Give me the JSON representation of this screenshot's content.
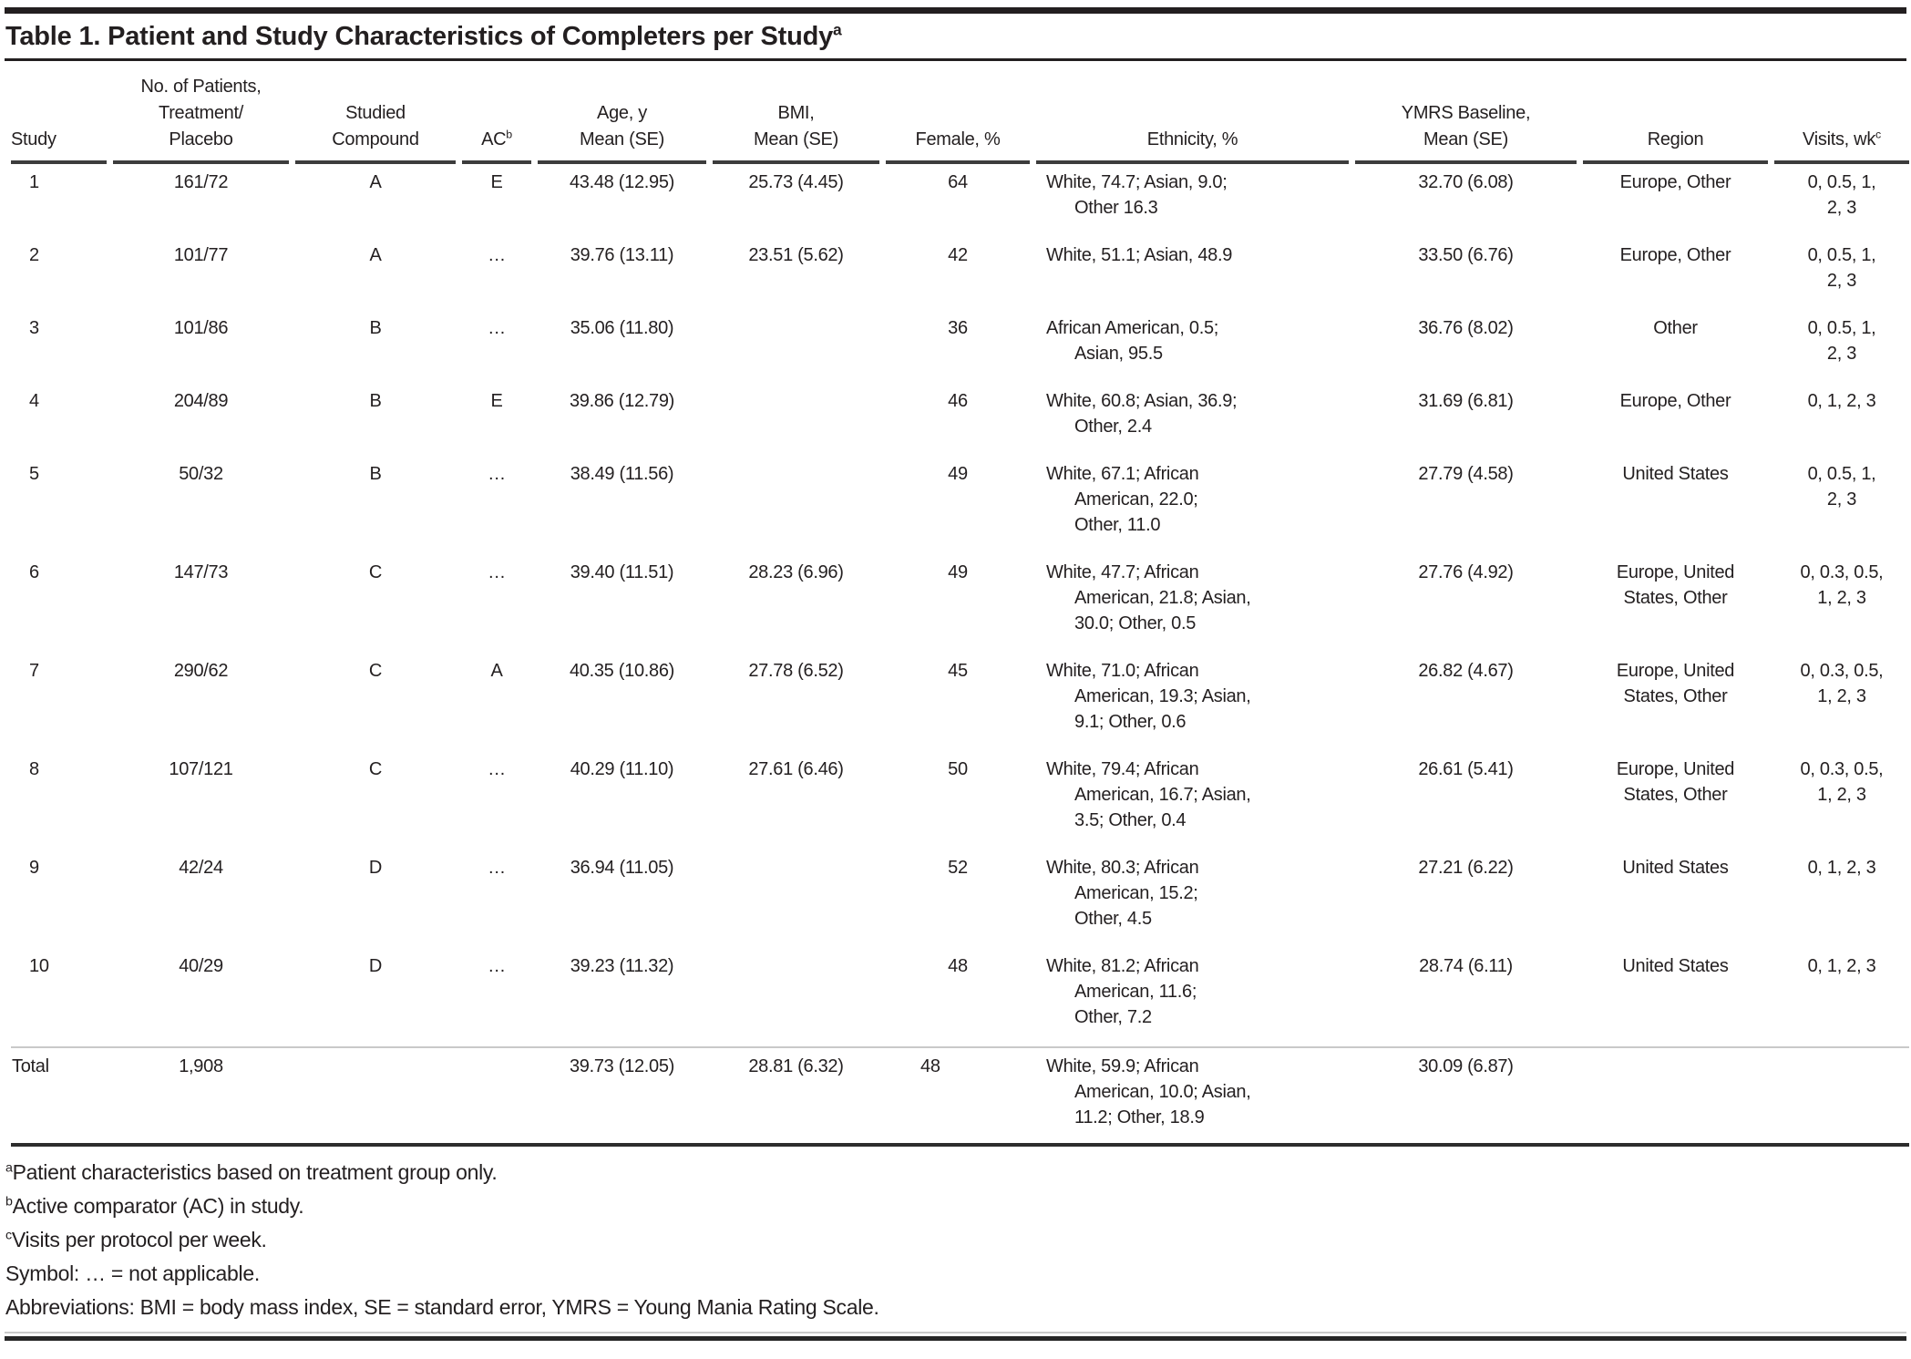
{
  "table": {
    "title": {
      "text": "Table 1. Patient and Study Characteristics of Completers per Study",
      "sup": "a"
    },
    "columns": {
      "study": "Study",
      "patients": "No. of Patients,\nTreatment/\nPlacebo",
      "compound": "Studied\nCompound",
      "ac": "AC",
      "ac_sup": "b",
      "age": "Age, y\nMean (SE)",
      "bmi": "BMI,\nMean (SE)",
      "female": "Female, %",
      "ethnicity": "Ethnicity, %",
      "ymrs": "YMRS Baseline,\nMean (SE)",
      "region": "Region",
      "visits": "Visits, wk",
      "visits_sup": "c"
    },
    "rows": [
      {
        "study": "1",
        "patients": "161/72",
        "compound": "A",
        "ac": "E",
        "age": "43.48 (12.95)",
        "bmi": "25.73 (4.45)",
        "female": "64",
        "ethnicity": "White, 74.7; Asian, 9.0;\nOther 16.3",
        "ymrs": "32.70 (6.08)",
        "region": "Europe, Other",
        "visits": "0, 0.5, 1,\n2, 3"
      },
      {
        "study": "2",
        "patients": "101/77",
        "compound": "A",
        "ac": "…",
        "age": "39.76 (13.11)",
        "bmi": "23.51 (5.62)",
        "female": "42",
        "ethnicity": "White, 51.1; Asian, 48.9",
        "ymrs": "33.50 (6.76)",
        "region": "Europe, Other",
        "visits": "0, 0.5, 1,\n2, 3"
      },
      {
        "study": "3",
        "patients": "101/86",
        "compound": "B",
        "ac": "…",
        "age": "35.06 (11.80)",
        "bmi": "",
        "female": "36",
        "ethnicity": "African American, 0.5;\nAsian, 95.5",
        "ymrs": "36.76 (8.02)",
        "region": "Other",
        "visits": "0, 0.5, 1,\n2, 3"
      },
      {
        "study": "4",
        "patients": "204/89",
        "compound": "B",
        "ac": "E",
        "age": "39.86 (12.79)",
        "bmi": "",
        "female": "46",
        "ethnicity": "White, 60.8; Asian, 36.9;\nOther, 2.4",
        "ymrs": "31.69 (6.81)",
        "region": "Europe, Other",
        "visits": "0, 1, 2, 3"
      },
      {
        "study": "5",
        "patients": "50/32",
        "compound": "B",
        "ac": "…",
        "age": "38.49 (11.56)",
        "bmi": "",
        "female": "49",
        "ethnicity": "White, 67.1; African\nAmerican, 22.0;\nOther, 11.0",
        "ymrs": "27.79 (4.58)",
        "region": "United States",
        "visits": "0, 0.5, 1,\n2, 3"
      },
      {
        "study": "6",
        "patients": "147/73",
        "compound": "C",
        "ac": "…",
        "age": "39.40 (11.51)",
        "bmi": "28.23 (6.96)",
        "female": "49",
        "ethnicity": "White, 47.7; African\nAmerican, 21.8; Asian,\n30.0; Other, 0.5",
        "ymrs": "27.76 (4.92)",
        "region": "Europe, United\nStates, Other",
        "visits": "0, 0.3, 0.5,\n1, 2, 3"
      },
      {
        "study": "7",
        "patients": "290/62",
        "compound": "C",
        "ac": "A",
        "age": "40.35 (10.86)",
        "bmi": "27.78 (6.52)",
        "female": "45",
        "ethnicity": "White, 71.0; African\nAmerican, 19.3; Asian,\n9.1; Other, 0.6",
        "ymrs": "26.82 (4.67)",
        "region": "Europe, United\nStates, Other",
        "visits": "0, 0.3, 0.5,\n1, 2, 3"
      },
      {
        "study": "8",
        "patients": "107/121",
        "compound": "C",
        "ac": "…",
        "age": "40.29 (11.10)",
        "bmi": "27.61 (6.46)",
        "female": "50",
        "ethnicity": "White, 79.4; African\nAmerican, 16.7; Asian,\n3.5; Other, 0.4",
        "ymrs": "26.61 (5.41)",
        "region": "Europe, United\nStates, Other",
        "visits": "0, 0.3, 0.5,\n1, 2, 3"
      },
      {
        "study": "9",
        "patients": "42/24",
        "compound": "D",
        "ac": "…",
        "age": "36.94 (11.05)",
        "bmi": "",
        "female": "52",
        "ethnicity": "White, 80.3; African\nAmerican, 15.2;\nOther, 4.5",
        "ymrs": "27.21 (6.22)",
        "region": "United States",
        "visits": "0, 1, 2, 3"
      },
      {
        "study": "10",
        "patients": "40/29",
        "compound": "D",
        "ac": "…",
        "age": "39.23 (11.32)",
        "bmi": "",
        "female": "48",
        "ethnicity": "White, 81.2; African\nAmerican, 11.6;\nOther, 7.2",
        "ymrs": "28.74 (6.11)",
        "region": "United States",
        "visits": "0, 1, 2, 3"
      }
    ],
    "total": {
      "study": "Total",
      "patients": "1,908",
      "compound": "",
      "ac": "",
      "age": "39.73 (12.05)",
      "bmi": "28.81 (6.32)",
      "female": "48",
      "ethnicity": "White, 59.9; African\nAmerican, 10.0; Asian,\n11.2; Other, 18.9",
      "ymrs": "30.09 (6.87)",
      "region": "",
      "visits": ""
    },
    "footnotes": [
      {
        "sup": "a",
        "text": "Patient characteristics based on treatment group only."
      },
      {
        "sup": "b",
        "text": "Active comparator (AC) in study."
      },
      {
        "sup": "c",
        "text": "Visits per protocol per week."
      },
      {
        "sup": "",
        "text": "Symbol: … = not applicable."
      },
      {
        "sup": "",
        "text": "Abbreviations: BMI = body mass index, SE = standard error, YMRS = Young Mania Rating Scale."
      }
    ]
  },
  "colors": {
    "text": "#231f20",
    "heavy_rule": "#231f20",
    "header_rule": "#3c3c3c",
    "light_rule": "#c9c9c9",
    "background": "#ffffff"
  }
}
